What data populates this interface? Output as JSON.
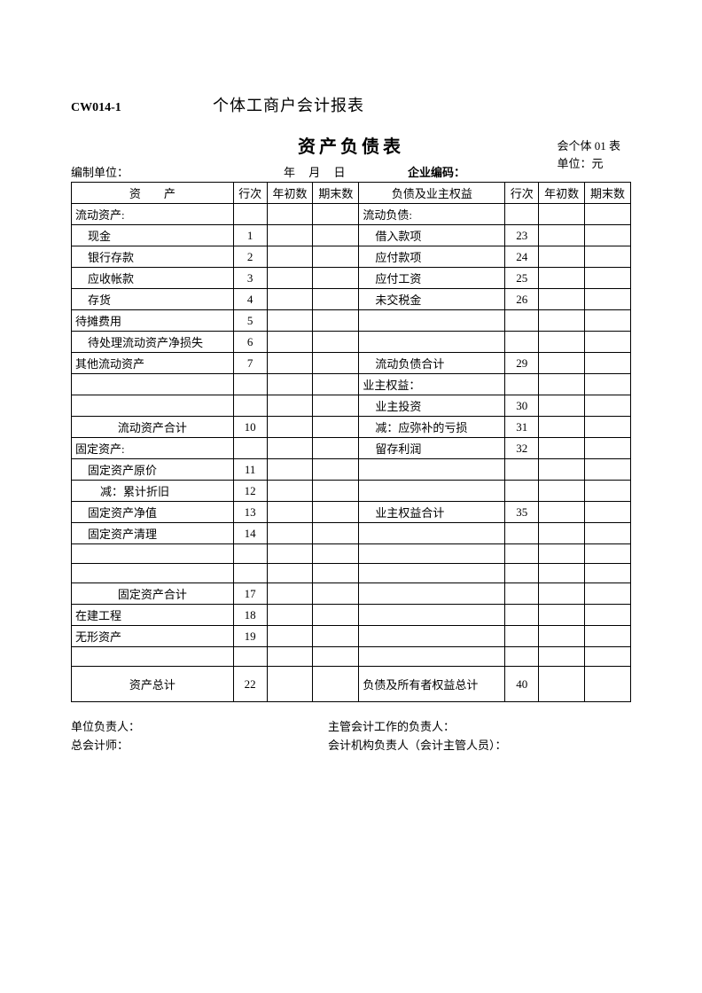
{
  "header": {
    "doc_code": "CW014-1",
    "doc_title": "个体工商户会计报表"
  },
  "main_title": "资产负债表",
  "meta": {
    "form_no": "会个体 01 表",
    "unit_label": "单位：元",
    "prepared_by_label": "编制单位：",
    "date_label": "年  月  日",
    "enterprise_code_label": "企业编码："
  },
  "columns": {
    "asset": "资　　产",
    "row": "行次",
    "begin": "年初数",
    "end": "期末数",
    "liab": "负债及业主权益",
    "row2": "行次",
    "begin2": "年初数",
    "end2": "期末数"
  },
  "rows": [
    {
      "a": "流动资产:",
      "ar": "",
      "l": "流动负债:",
      "lr": ""
    },
    {
      "a": "现金",
      "ai": "indent1",
      "ar": "1",
      "l": "借入款项",
      "li": "indent1",
      "lr": "23"
    },
    {
      "a": "银行存款",
      "ai": "indent1",
      "ar": "2",
      "l": "应付款项",
      "li": "indent1",
      "lr": "24"
    },
    {
      "a": "应收帐款",
      "ai": "indent1",
      "ar": "3",
      "l": "应付工资",
      "li": "indent1",
      "lr": "25"
    },
    {
      "a": "存货",
      "ai": "indent1",
      "ar": "4",
      "l": "未交税金",
      "li": "indent1",
      "lr": "26"
    },
    {
      "a": "待摊费用",
      "ar": "5",
      "l": "",
      "lr": ""
    },
    {
      "a": "待处理流动资产净损失",
      "ai": "indent1",
      "ar": "6",
      "l": "",
      "lr": ""
    },
    {
      "a": "其他流动资产",
      "ar": "7",
      "l": "流动负债合计",
      "li": "indent1",
      "lr": "29"
    },
    {
      "a": "",
      "ar": "",
      "l": "业主权益：",
      "lr": ""
    },
    {
      "a": "",
      "ar": "",
      "l": "业主投资",
      "li": "indent1",
      "lr": "30"
    },
    {
      "a": "流动资产合计",
      "ai": "center",
      "ar": "10",
      "l": "减：应弥补的亏损",
      "li": "indent1",
      "lr": "31"
    },
    {
      "a": "固定资产:",
      "ar": "",
      "l": "留存利润",
      "li": "indent1",
      "lr": "32"
    },
    {
      "a": "固定资产原价",
      "ai": "indent1",
      "ar": "11",
      "l": "",
      "lr": ""
    },
    {
      "a": "减：累计折旧",
      "ai": "indent2",
      "ar": "12",
      "l": "",
      "lr": ""
    },
    {
      "a": "固定资产净值",
      "ai": "indent1",
      "ar": "13",
      "l": "业主权益合计",
      "li": "indent1",
      "lr": "35"
    },
    {
      "a": "固定资产清理",
      "ai": "indent1",
      "ar": "14",
      "l": "",
      "lr": ""
    },
    {
      "a": "",
      "ar": "",
      "l": "",
      "lr": ""
    },
    {
      "a": "",
      "ar": "",
      "l": "",
      "lr": ""
    },
    {
      "a": "固定资产合计",
      "ai": "center",
      "ar": "17",
      "l": "",
      "lr": ""
    },
    {
      "a": "在建工程",
      "ar": "18",
      "l": "",
      "lr": ""
    },
    {
      "a": "无形资产",
      "ar": "19",
      "l": "",
      "lr": ""
    },
    {
      "a": "",
      "ar": "",
      "l": "",
      "lr": ""
    },
    {
      "a": "资产总计",
      "ai": "center",
      "ar": "22",
      "l": "负债及所有者权益总计",
      "lr": "40",
      "tall": true
    }
  ],
  "footer": {
    "left1": "单位负责人：",
    "left2": "总会计师：",
    "right1": "主管会计工作的负责人：",
    "right2": "会计机构负责人（会计主管人员）："
  }
}
